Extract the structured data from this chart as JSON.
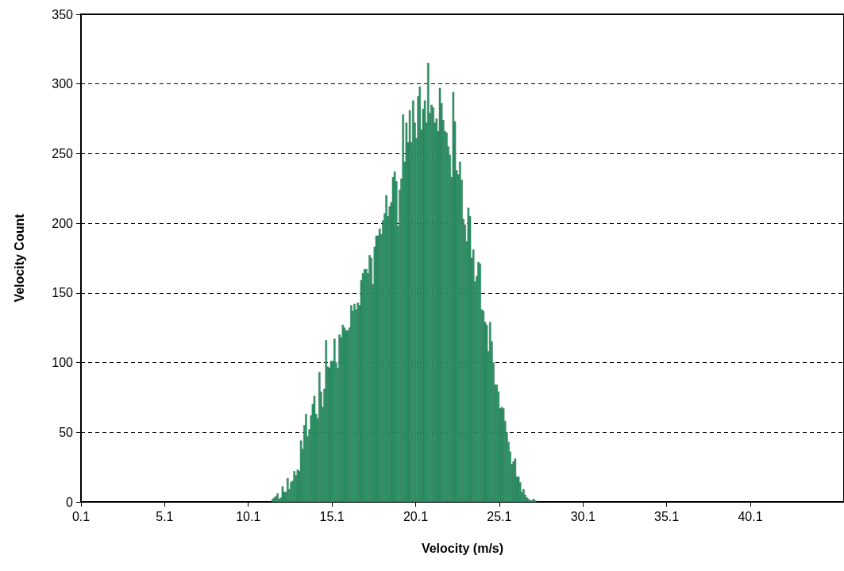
{
  "chart_data": {
    "type": "histogram",
    "xlabel": "Velocity (m/s)",
    "ylabel": "Velocity Count",
    "color": "#2f9a6b",
    "bins": [
      11.5,
      11.6,
      11.7,
      11.8,
      11.9,
      12.0,
      12.1,
      12.2,
      12.3,
      12.4,
      12.5,
      12.6,
      12.7,
      12.8,
      12.9,
      13.0,
      13.1,
      13.2,
      13.3,
      13.4,
      13.5,
      13.6,
      13.7,
      13.8,
      13.9,
      14.0,
      14.1,
      14.2,
      14.3,
      14.4,
      14.5,
      14.6,
      14.7,
      14.8,
      14.9,
      15.0,
      15.1,
      15.2,
      15.3,
      15.4,
      15.5,
      15.6,
      15.7,
      15.8,
      15.9,
      16.0,
      16.1,
      16.2,
      16.3,
      16.4,
      16.5,
      16.6,
      16.7,
      16.8,
      16.9,
      17.0,
      17.1,
      17.2,
      17.3,
      17.4,
      17.5,
      17.6,
      17.7,
      17.8,
      17.9,
      18.0,
      18.1,
      18.2,
      18.3,
      18.4,
      18.5,
      18.6,
      18.7,
      18.8,
      18.9,
      19.0,
      19.1,
      19.2,
      19.3,
      19.4,
      19.5,
      19.6,
      19.7,
      19.8,
      19.9,
      20.0,
      20.1,
      20.2,
      20.3,
      20.4,
      20.5,
      20.6,
      20.7,
      20.8,
      20.9,
      21.0,
      21.1,
      21.2,
      21.3,
      21.4,
      21.5,
      21.6,
      21.7,
      21.8,
      21.9,
      22.0,
      22.1,
      22.2,
      22.3,
      22.4,
      22.5,
      22.6,
      22.7,
      22.8,
      22.9,
      23.0,
      23.1,
      23.2,
      23.3,
      23.4,
      23.5,
      23.6,
      23.7,
      23.8,
      23.9,
      24.0,
      24.1,
      24.2,
      24.3,
      24.4,
      24.5,
      24.6,
      24.7,
      24.8,
      24.9,
      25.0,
      25.1,
      25.2,
      25.3,
      25.4,
      25.5,
      25.6,
      25.7,
      25.8,
      25.9,
      26.0,
      26.1,
      26.2,
      26.3,
      26.4,
      26.5,
      26.6,
      26.7,
      26.8,
      26.9,
      27.0,
      27.1,
      27.2,
      27.3
    ],
    "values": [
      2,
      3,
      4,
      6,
      2,
      3,
      11,
      7,
      7,
      17,
      9,
      14,
      15,
      22,
      19,
      23,
      22,
      44,
      38,
      55,
      63,
      47,
      52,
      62,
      70,
      76,
      63,
      60,
      93,
      79,
      68,
      81,
      116,
      97,
      96,
      101,
      101,
      117,
      100,
      96,
      120,
      118,
      127,
      125,
      123,
      123,
      125,
      141,
      137,
      142,
      138,
      143,
      141,
      159,
      164,
      167,
      167,
      164,
      177,
      175,
      156,
      183,
      191,
      191,
      196,
      192,
      202,
      207,
      220,
      205,
      212,
      215,
      233,
      237,
      230,
      198,
      224,
      232,
      278,
      244,
      272,
      258,
      281,
      258,
      288,
      272,
      261,
      291,
      298,
      267,
      282,
      288,
      272,
      315,
      279,
      285,
      283,
      272,
      275,
      266,
      297,
      286,
      274,
      266,
      265,
      255,
      249,
      233,
      294,
      273,
      238,
      235,
      244,
      231,
      203,
      199,
      187,
      211,
      205,
      175,
      181,
      158,
      162,
      172,
      171,
      138,
      137,
      129,
      127,
      108,
      129,
      115,
      100,
      84,
      84,
      79,
      67,
      68,
      67,
      58,
      50,
      43,
      36,
      27,
      29,
      31,
      18,
      18,
      14,
      7,
      9,
      5,
      3,
      2,
      1,
      1,
      2,
      1
    ],
    "xlim": [
      0.1,
      45.7
    ],
    "xticks": [
      0.1,
      5.1,
      10.1,
      15.1,
      20.1,
      25.1,
      30.1,
      35.1,
      40.1
    ],
    "ylim": [
      0,
      350
    ],
    "yticks": [
      0,
      50,
      100,
      150,
      200,
      250,
      300,
      350
    ],
    "grid": "y"
  }
}
